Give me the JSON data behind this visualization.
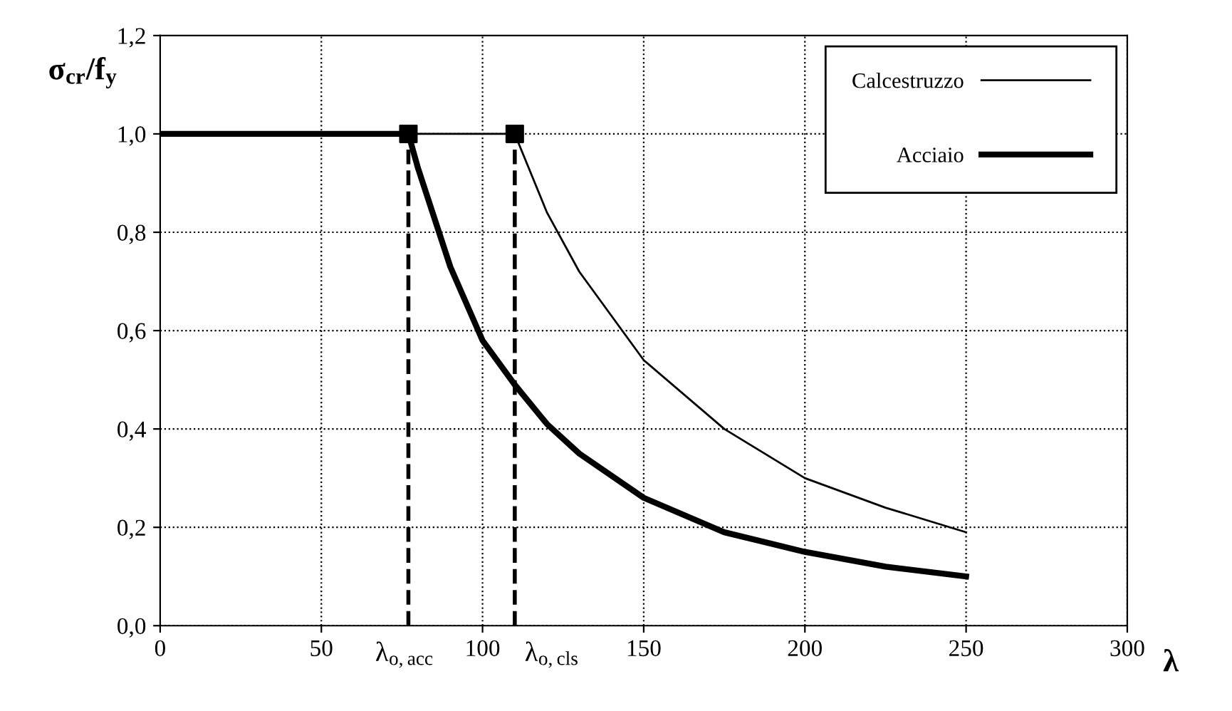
{
  "chart_data": {
    "type": "line",
    "xlabel": "λ",
    "ylabel": "σ$_{cr}$/f$_{y}$",
    "xlim": [
      0,
      300
    ],
    "xticks": [
      0,
      50,
      100,
      150,
      200,
      250,
      300
    ],
    "ylim": [
      0,
      1.2
    ],
    "yticks": [
      {
        "value": 0,
        "label": "0,0"
      },
      {
        "value": 0.2,
        "label": "0,2"
      },
      {
        "value": 0.4,
        "label": "0,4"
      },
      {
        "value": 0.6,
        "label": "0,6"
      },
      {
        "value": 0.8,
        "label": "0,8"
      },
      {
        "value": 1.0,
        "label": "1,0"
      },
      {
        "value": 1.2,
        "label": "1,2"
      }
    ],
    "grid": true,
    "legend": "top right",
    "series": [
      {
        "name": "Calcestruzzo",
        "color": "#000000",
        "x": [
          0,
          110,
          120,
          130,
          150,
          175,
          200,
          225,
          250
        ],
        "values": [
          1.0,
          1.0,
          0.84,
          0.72,
          0.54,
          0.4,
          0.3,
          0.24,
          0.19
        ]
      },
      {
        "name": "Acciaio",
        "color": "#000000",
        "x": [
          0,
          77,
          80,
          90,
          100,
          110,
          120,
          130,
          150,
          175,
          200,
          225,
          250
        ],
        "values": [
          1.0,
          1.0,
          0.93,
          0.73,
          0.58,
          0.49,
          0.41,
          0.35,
          0.26,
          0.19,
          0.15,
          0.12,
          0.1
        ]
      },
      {
        "type": "scatter",
        "color": "#000000",
        "marker": "square",
        "x": [
          77,
          110
        ],
        "values": [
          1.0,
          1.0
        ]
      }
    ],
    "ref_lines": [
      {
        "axis": "x",
        "value": 77,
        "label": "λ$_{o,acc}$",
        "line_style": "dashed"
      },
      {
        "axis": "x",
        "value": 110,
        "label": "λ$_{o,cls}$",
        "line_style": "dashed"
      }
    ]
  }
}
